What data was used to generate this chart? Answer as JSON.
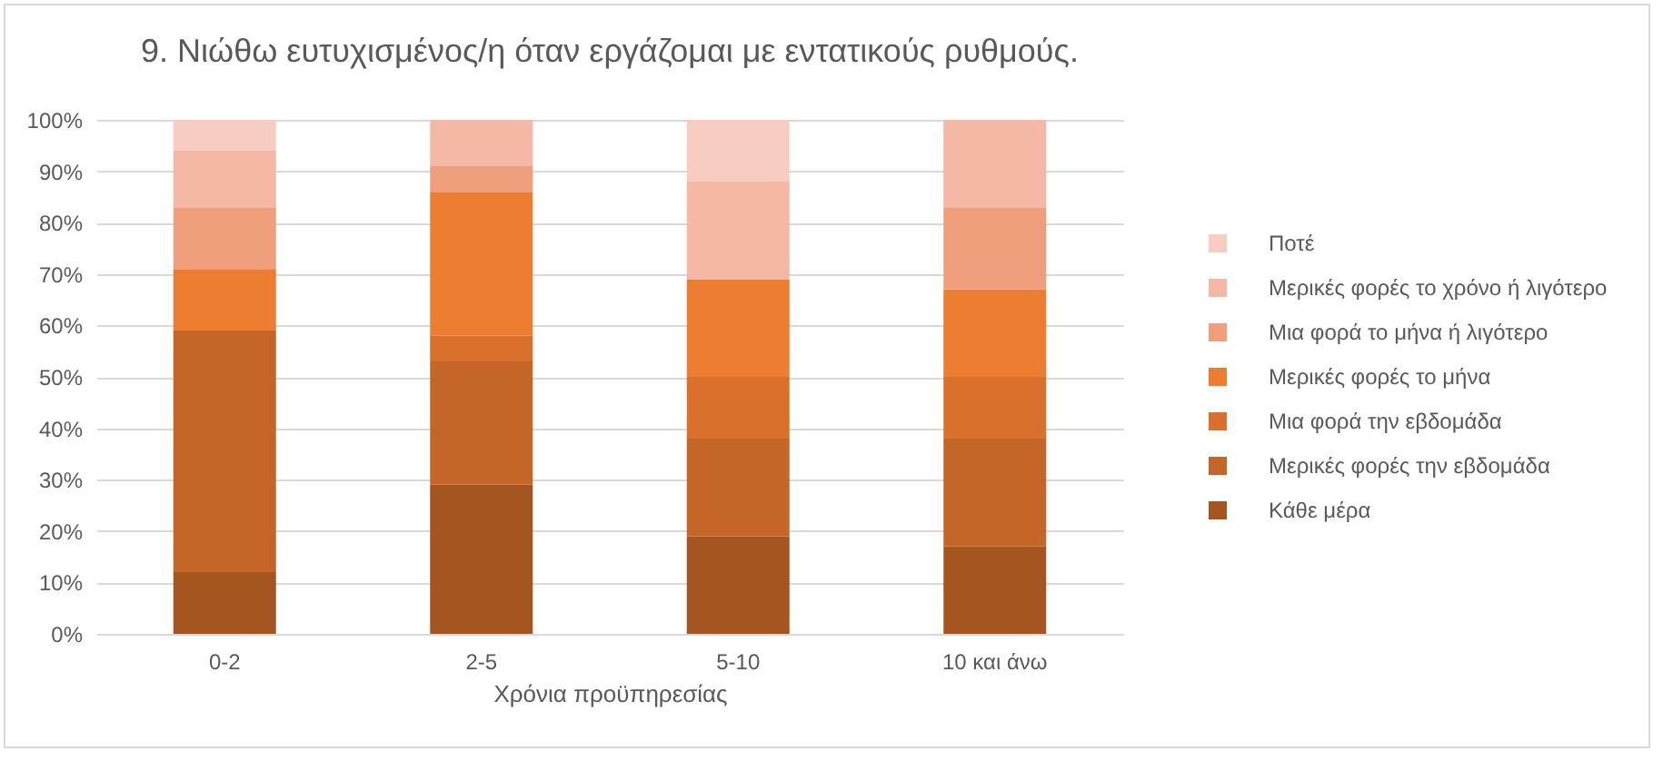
{
  "chart_data": {
    "type": "bar",
    "stacked": true,
    "title": "9. Νιώθω ευτυχισμένος/η όταν εργάζομαι με εντατικούς ρυθμούς.",
    "xlabel": "Χρόνια προϋπηρεσίας",
    "categories": [
      "0-2",
      "2-5",
      "5-10",
      "10 και άνω"
    ],
    "series": [
      {
        "name": "Κάθε μέρα",
        "color": "#a5551f",
        "values": [
          12,
          29,
          19,
          17
        ]
      },
      {
        "name": "Μερικές φορές την εβδομάδα",
        "color": "#c46627",
        "values": [
          47,
          24,
          19,
          21
        ]
      },
      {
        "name": "Μια φορά την εβδομάδα",
        "color": "#d9712d",
        "values": [
          0,
          5,
          12,
          12
        ]
      },
      {
        "name": "Μερικές φορές το μήνα",
        "color": "#ed7d31",
        "values": [
          12,
          28,
          19,
          17
        ]
      },
      {
        "name": "Μια φορά το μήνα ή λιγότερο",
        "color": "#f09f7c",
        "values": [
          12,
          5,
          0,
          16
        ]
      },
      {
        "name": "Μερικές φορές το χρόνο ή λιγότερο",
        "color": "#f4b8a4",
        "values": [
          11,
          9,
          19,
          17
        ]
      },
      {
        "name": "Ποτέ",
        "color": "#f8cdc1",
        "values": [
          6,
          0,
          12,
          0
        ]
      }
    ],
    "ylim": [
      0,
      100
    ],
    "yticks": [
      {
        "value": 0,
        "label": "0%"
      },
      {
        "value": 10,
        "label": "10%"
      },
      {
        "value": 20,
        "label": "20%"
      },
      {
        "value": 30,
        "label": "30%"
      },
      {
        "value": 40,
        "label": "40%"
      },
      {
        "value": 50,
        "label": "50%"
      },
      {
        "value": 60,
        "label": "60%"
      },
      {
        "value": 70,
        "label": "70%"
      },
      {
        "value": 80,
        "label": "80%"
      },
      {
        "value": 90,
        "label": "90%"
      },
      {
        "value": 100,
        "label": "100%"
      }
    ],
    "grid": "y",
    "legend": "right"
  }
}
